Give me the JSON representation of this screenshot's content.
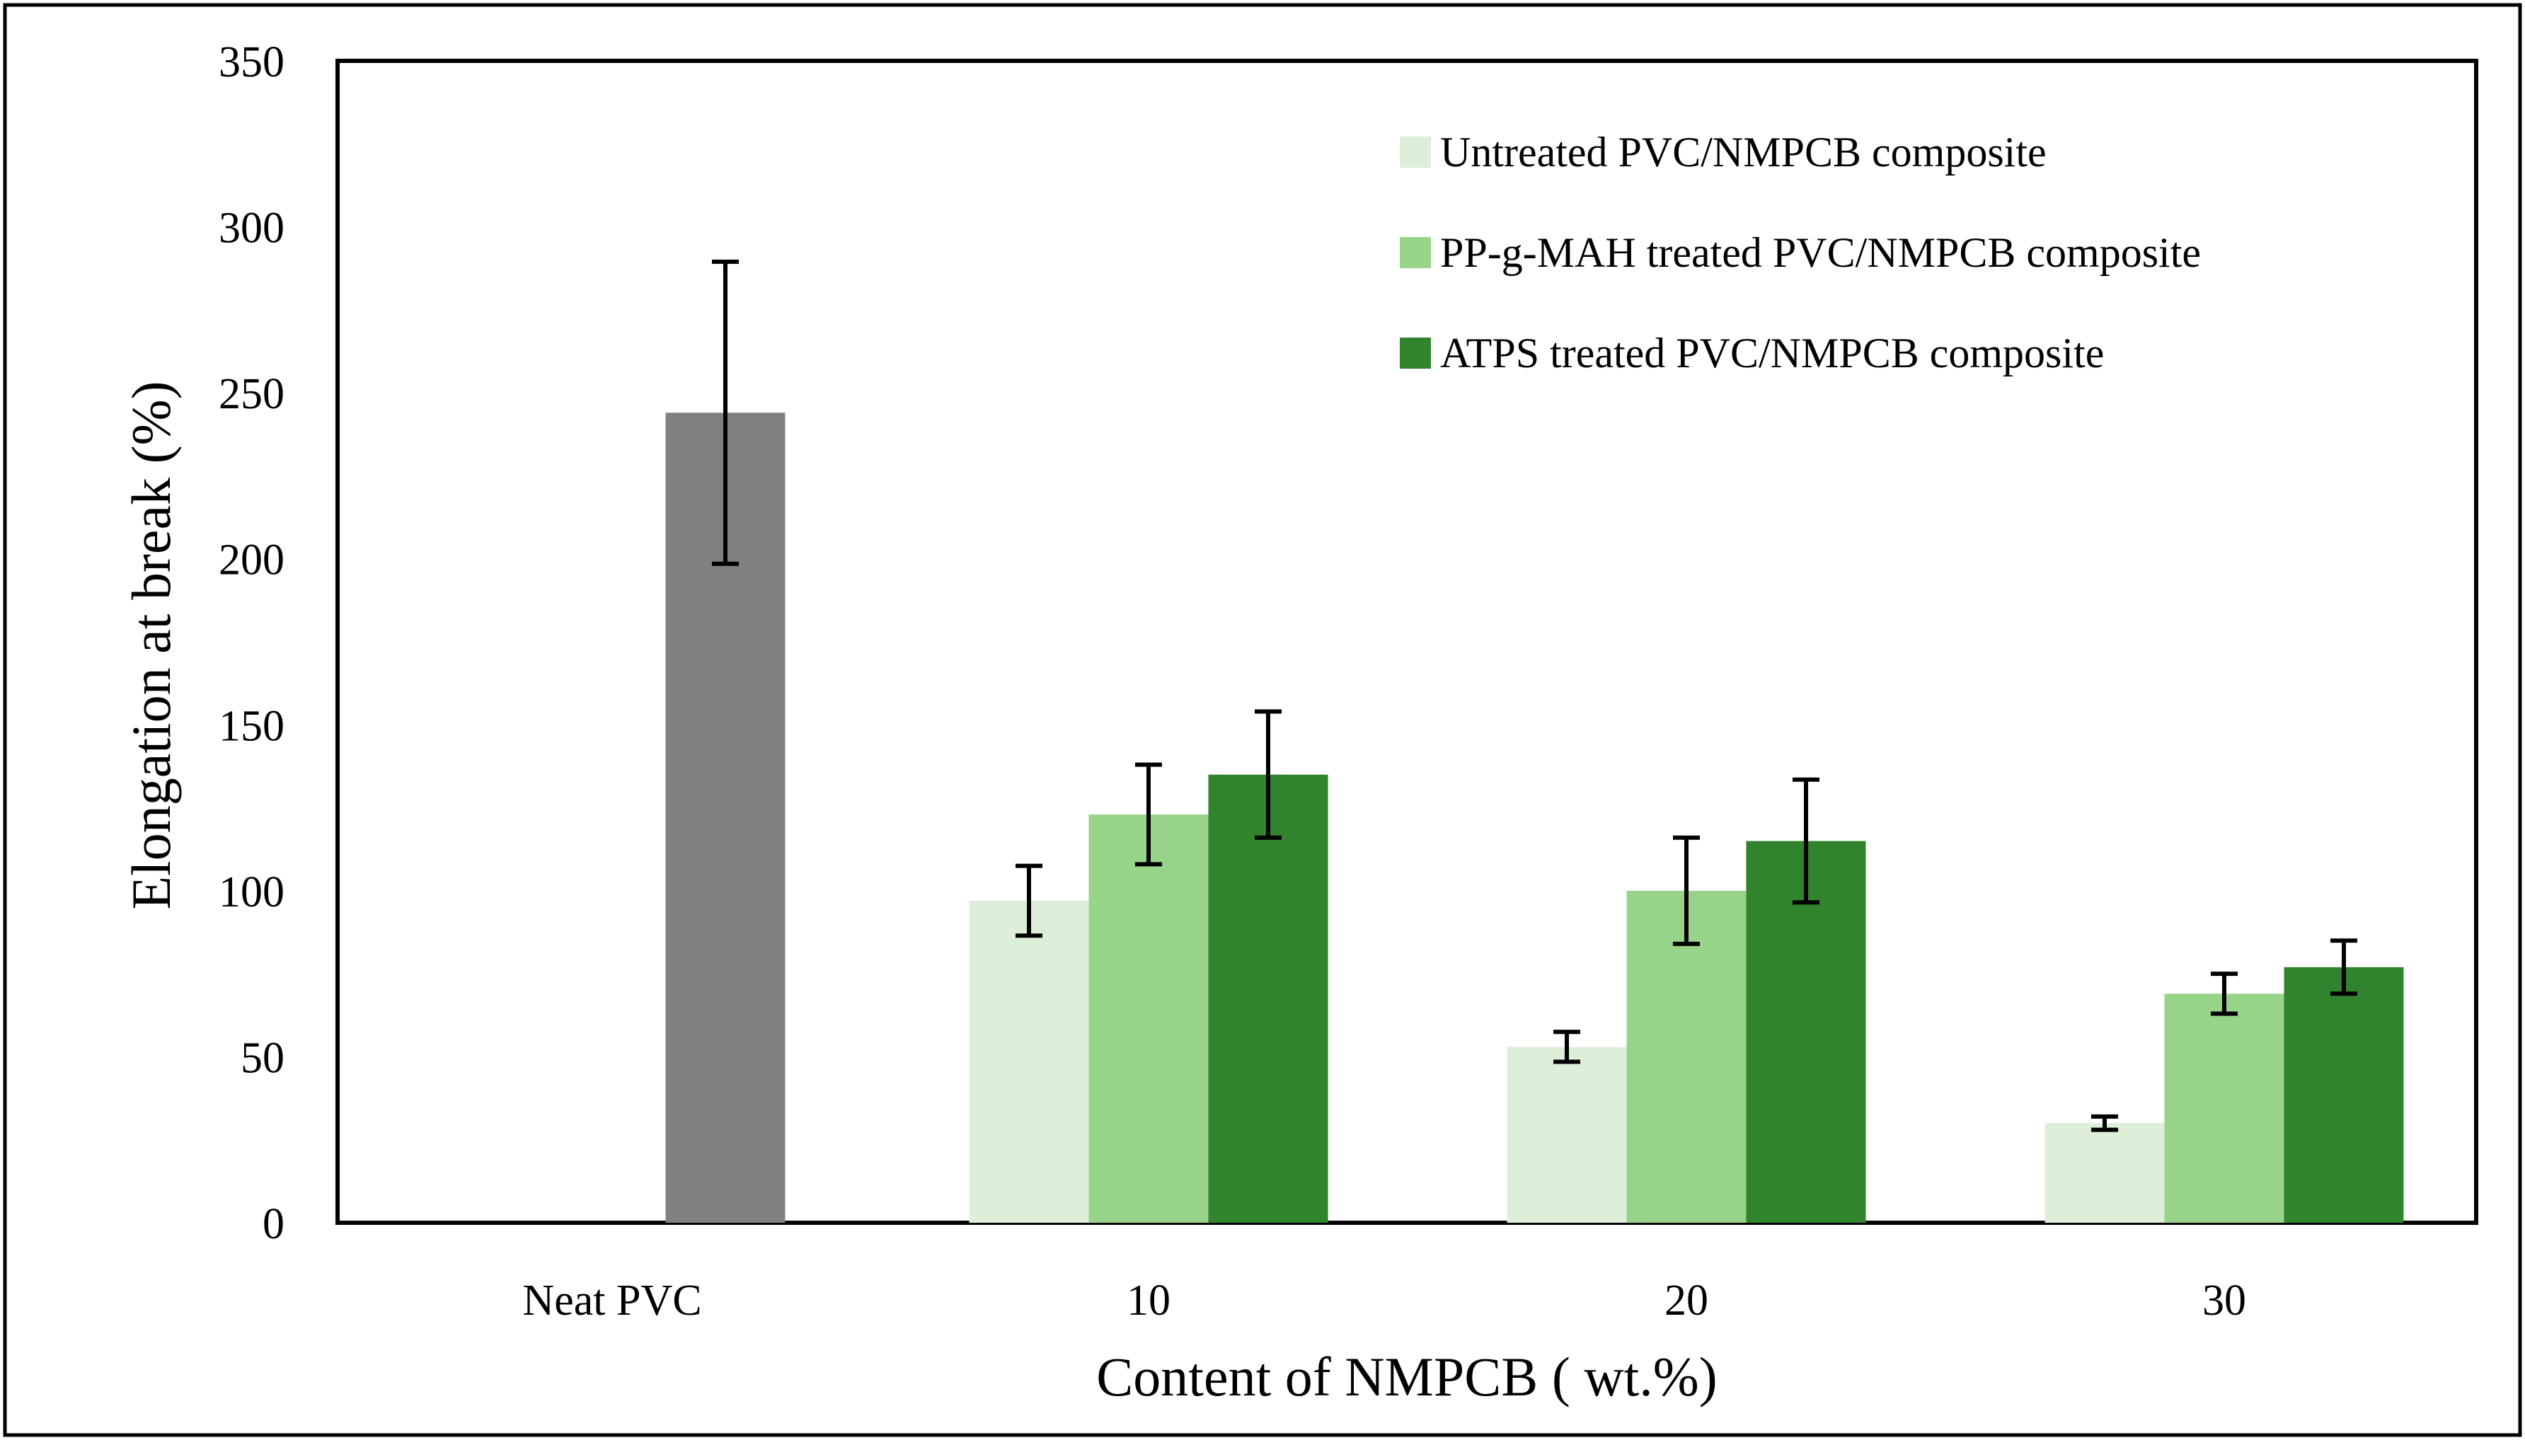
{
  "chart_data": {
    "type": "bar",
    "title": "",
    "xlabel": "Content of NMPCB ( wt.%)",
    "ylabel": "Elongation at break (%)",
    "ylim": [
      0,
      350
    ],
    "yticks": [
      0,
      50,
      100,
      150,
      200,
      250,
      300,
      350
    ],
    "grid": false,
    "legend_position": "top-right",
    "categories": [
      "Neat PVC",
      "10",
      "20",
      "30"
    ],
    "series": [
      {
        "name": "Untreated PVC/NMPCB composite",
        "color": "#ddefd9",
        "values": [
          null,
          97,
          53,
          30
        ],
        "errors": [
          null,
          10.5,
          4.5,
          2
        ],
        "in_legend": true
      },
      {
        "name": "PP-g-MAH treated PVC/NMPCB composite",
        "color": "#98d38a",
        "values": [
          null,
          123,
          100,
          69
        ],
        "errors": [
          null,
          15,
          16,
          6
        ],
        "in_legend": true
      },
      {
        "name": "ATPS treated PVC/NMPCB composite",
        "color": "#31842d",
        "values": [
          null,
          135,
          115,
          77
        ],
        "errors": [
          null,
          19,
          18.5,
          8
        ],
        "in_legend": true
      },
      {
        "name": "Neat PVC",
        "color": "#808080",
        "values": [
          244,
          null,
          null,
          null
        ],
        "errors": [
          45.5,
          null,
          null,
          null
        ],
        "in_legend": false
      }
    ]
  }
}
